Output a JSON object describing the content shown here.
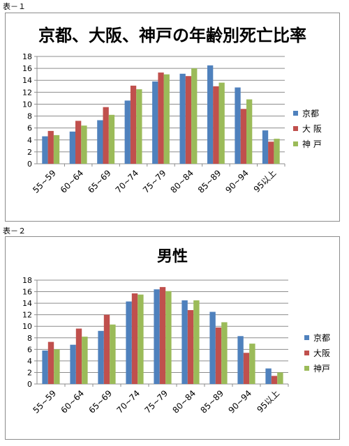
{
  "captions": [
    "表－１",
    "表－２"
  ],
  "chart_data": [
    {
      "type": "bar",
      "title": "京都、大阪、神戸の年齢別死亡比率",
      "categories": [
        "55~59",
        "60~64",
        "65~69",
        "70~74",
        "75~79",
        "80~84",
        "85~89",
        "90~94",
        "95以上"
      ],
      "ylim": [
        0,
        18
      ],
      "yticks": [
        0,
        2,
        4,
        6,
        8,
        10,
        12,
        14,
        16,
        18
      ],
      "grid": true,
      "legend_position": "right",
      "series": [
        {
          "name": "京都",
          "color": "#4f81bd",
          "values": [
            4.6,
            5.4,
            7.3,
            10.6,
            13.8,
            15.1,
            16.5,
            12.8,
            5.6
          ]
        },
        {
          "name": "大 阪",
          "color": "#c0504d",
          "values": [
            5.5,
            7.2,
            9.5,
            13.1,
            15.3,
            14.7,
            13.0,
            9.2,
            3.7
          ]
        },
        {
          "name": "神 戸",
          "color": "#9bbb59",
          "values": [
            4.8,
            6.4,
            8.2,
            12.5,
            15.0,
            16.0,
            13.6,
            10.8,
            4.2
          ]
        }
      ]
    },
    {
      "type": "bar",
      "title": "男性",
      "categories": [
        "55~59",
        "60~64",
        "65~69",
        "70~74",
        "75~79",
        "80~84",
        "85~89",
        "90~94",
        "95以上"
      ],
      "ylim": [
        0,
        18
      ],
      "yticks": [
        0,
        2,
        4,
        6,
        8,
        10,
        12,
        14,
        16,
        18
      ],
      "grid": true,
      "legend_position": "right",
      "series": [
        {
          "name": "京都",
          "color": "#4f81bd",
          "values": [
            5.8,
            6.8,
            9.2,
            14.3,
            16.4,
            14.5,
            12.5,
            8.3,
            2.7
          ]
        },
        {
          "name": "大阪",
          "color": "#c0504d",
          "values": [
            7.3,
            9.6,
            12.0,
            15.7,
            16.8,
            12.8,
            9.8,
            5.4,
            1.4
          ]
        },
        {
          "name": "神戸",
          "color": "#9bbb59",
          "values": [
            6.0,
            8.2,
            10.3,
            15.5,
            16.1,
            14.5,
            10.7,
            7.0,
            2.0
          ]
        }
      ]
    }
  ]
}
